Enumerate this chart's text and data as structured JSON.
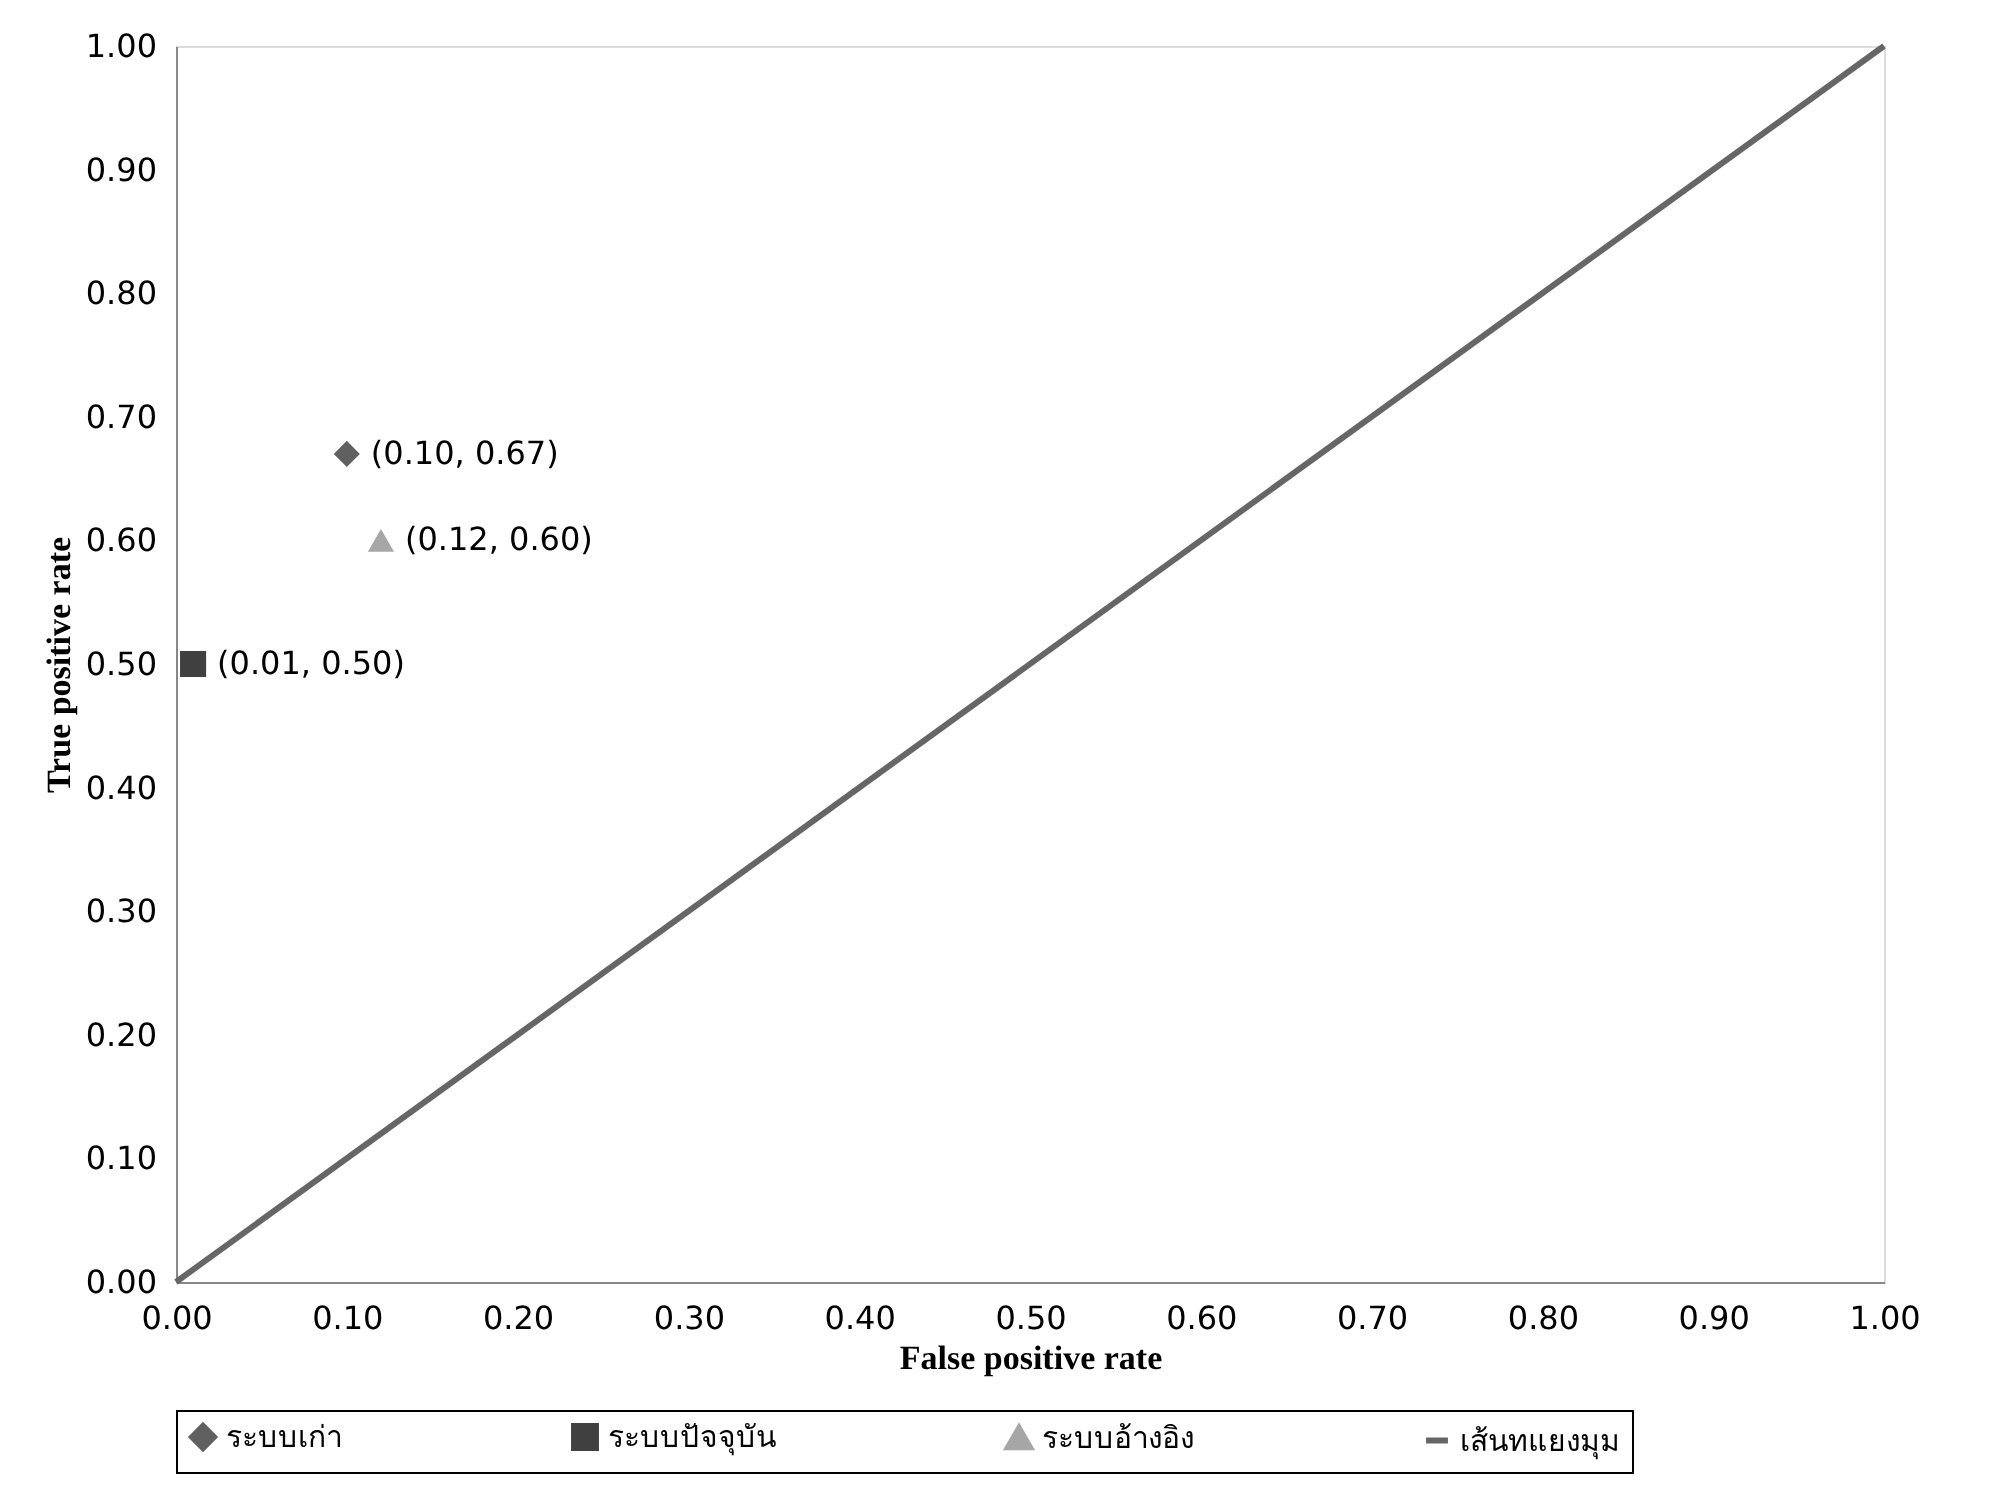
{
  "chart_data": {
    "type": "scatter",
    "xlabel": "False positive rate",
    "ylabel": "True positive rate",
    "xlim": [
      0,
      1
    ],
    "ylim": [
      0,
      1
    ],
    "xticks": [
      {
        "value": 0,
        "label": "0.00"
      },
      {
        "value": 0.1,
        "label": "0.10"
      },
      {
        "value": 0.2,
        "label": "0.20"
      },
      {
        "value": 0.3,
        "label": "0.30"
      },
      {
        "value": 0.4,
        "label": "0.40"
      },
      {
        "value": 0.5,
        "label": "0.50"
      },
      {
        "value": 0.6,
        "label": "0.60"
      },
      {
        "value": 0.7,
        "label": "0.70"
      },
      {
        "value": 0.8,
        "label": "0.80"
      },
      {
        "value": 0.9,
        "label": "0.90"
      },
      {
        "value": 1,
        "label": "1.00"
      }
    ],
    "yticks": [
      {
        "value": 0,
        "label": "0.00"
      },
      {
        "value": 0.1,
        "label": "0.10"
      },
      {
        "value": 0.2,
        "label": "0.20"
      },
      {
        "value": 0.3,
        "label": "0.30"
      },
      {
        "value": 0.4,
        "label": "0.40"
      },
      {
        "value": 0.5,
        "label": "0.50"
      },
      {
        "value": 0.6,
        "label": "0.60"
      },
      {
        "value": 0.7,
        "label": "0.70"
      },
      {
        "value": 0.8,
        "label": "0.80"
      },
      {
        "value": 0.9,
        "label": "0.90"
      },
      {
        "value": 1,
        "label": "1.00"
      }
    ],
    "grid": false,
    "legend": "bottom",
    "series": [
      {
        "name": "ระบบเก่า",
        "marker": "diamond",
        "color": "#606060",
        "x": [
          0.1
        ],
        "values": [
          0.67
        ],
        "value_labels": [
          "(0.10, 0.67)"
        ]
      },
      {
        "name": "ระบบปัจจุบัน",
        "marker": "square",
        "color": "#404040",
        "x": [
          0.01
        ],
        "values": [
          0.5
        ],
        "value_labels": [
          "(0.01, 0.50)"
        ]
      },
      {
        "name": "ระบบอ้างอิง",
        "marker": "triangle",
        "color": "#a6a6a6",
        "x": [
          0.12
        ],
        "values": [
          0.6
        ],
        "value_labels": [
          "(0.12, 0.60)"
        ]
      },
      {
        "name": "เส้นทแยงมุม",
        "type": "line",
        "marker": "none",
        "color": "#666666",
        "line_style": "solid",
        "x": [
          0,
          1
        ],
        "values": [
          0,
          1
        ]
      }
    ]
  }
}
